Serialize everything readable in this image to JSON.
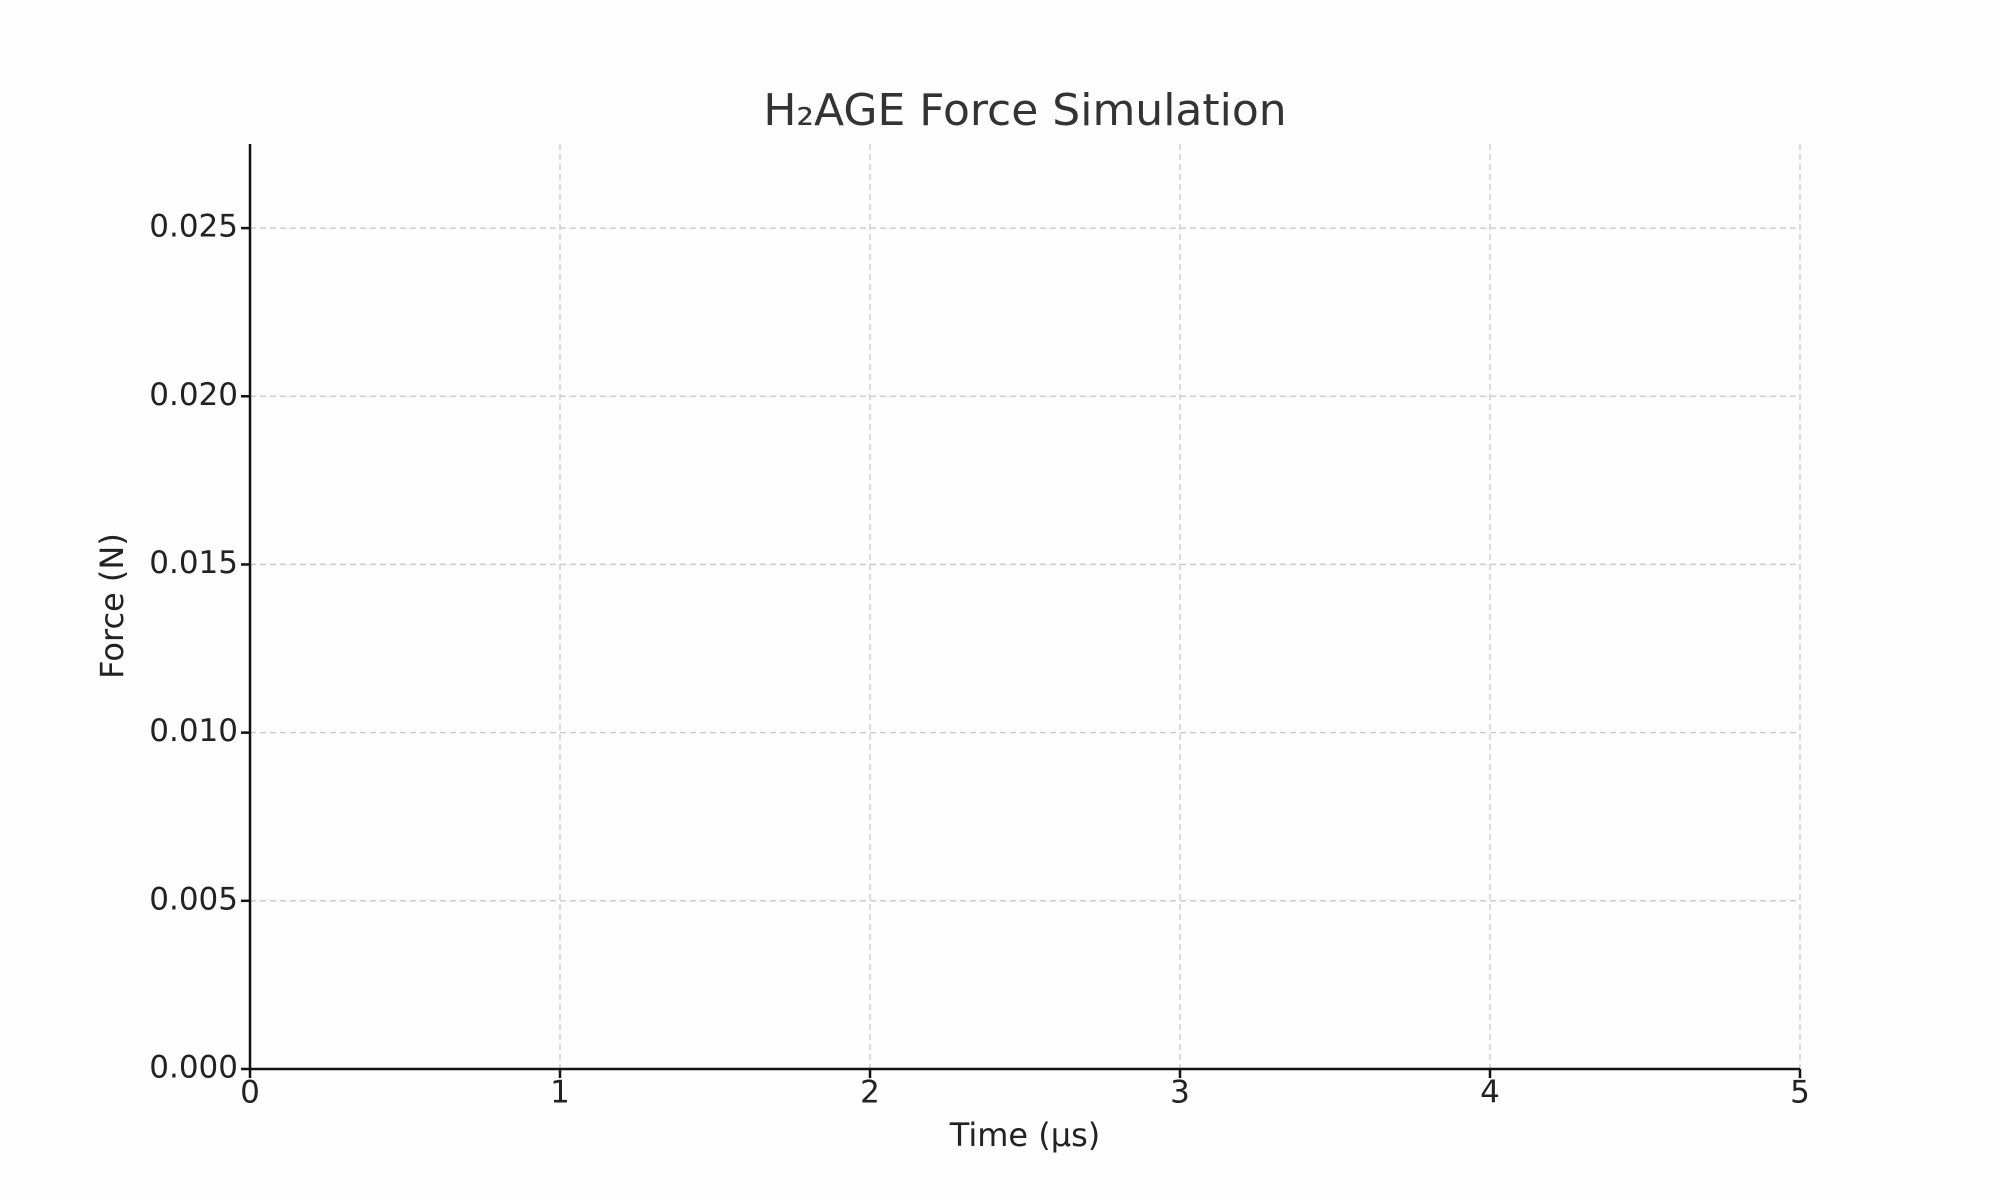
{
  "chart_data": {
    "type": "line",
    "title": "H₂AGE Force Simulation",
    "x_label": "Time (µs)",
    "y_label": "Force (N)",
    "series": [],
    "xlim": [
      0,
      5
    ],
    "xticks": [
      0,
      1,
      2,
      3,
      4,
      5
    ],
    "ylim": [
      0,
      0.0275
    ],
    "yticks": [
      {
        "value": 0,
        "label": "0.000"
      },
      0.005,
      {
        "value": 0.01,
        "label": "0.010"
      },
      0.015,
      {
        "value": 0.02,
        "label": "0.020"
      },
      0.025
    ],
    "grid": true
  }
}
